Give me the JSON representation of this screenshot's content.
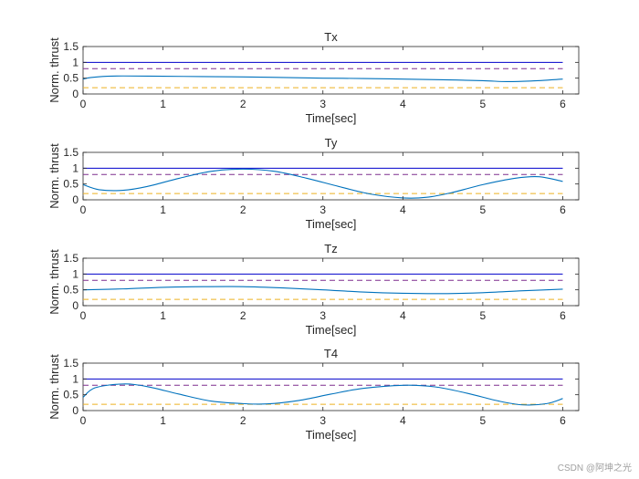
{
  "watermark": "CSDN @阿坤之光",
  "colors": {
    "upper_line": "#0000cc",
    "upper_dash": "#7e2f8e",
    "lower_dash": "#edb120",
    "signal": "#0072bd",
    "axis": "#262626"
  },
  "chart_data": [
    {
      "type": "line",
      "title": "Tx",
      "xlabel": "Time[sec]",
      "ylabel": "Norm. thrust",
      "xlim": [
        0,
        6.2
      ],
      "ylim": [
        0,
        1.5
      ],
      "xticks": [
        "0",
        "1",
        "2",
        "3",
        "4",
        "5",
        "6"
      ],
      "yticks": [
        "0",
        "0.5",
        "1",
        "1.5"
      ],
      "limits": {
        "upper_solid": 1.0,
        "upper_dashed": 0.8,
        "lower_dashed": 0.2
      },
      "signal": {
        "x": [
          0,
          0.1,
          0.3,
          0.5,
          1.0,
          1.5,
          2.0,
          2.5,
          3.0,
          3.5,
          4.0,
          4.5,
          5.0,
          5.3,
          5.6,
          6.0
        ],
        "y": [
          0.47,
          0.52,
          0.56,
          0.57,
          0.56,
          0.55,
          0.54,
          0.52,
          0.5,
          0.49,
          0.47,
          0.45,
          0.42,
          0.39,
          0.41,
          0.47
        ]
      }
    },
    {
      "type": "line",
      "title": "Ty",
      "xlabel": "Time[sec]",
      "ylabel": "Norm. thrust",
      "xlim": [
        0,
        6.2
      ],
      "ylim": [
        0,
        1.5
      ],
      "xticks": [
        "0",
        "1",
        "2",
        "3",
        "4",
        "5",
        "6"
      ],
      "yticks": [
        "0",
        "0.5",
        "1",
        "1.5"
      ],
      "limits": {
        "upper_solid": 1.0,
        "upper_dashed": 0.8,
        "lower_dashed": 0.2
      },
      "signal": {
        "x": [
          0,
          0.2,
          0.5,
          0.8,
          1.2,
          1.6,
          2.0,
          2.4,
          2.8,
          3.2,
          3.6,
          4.0,
          4.3,
          4.6,
          5.0,
          5.4,
          5.7,
          6.0
        ],
        "y": [
          0.48,
          0.32,
          0.3,
          0.42,
          0.68,
          0.9,
          0.97,
          0.9,
          0.68,
          0.42,
          0.18,
          0.06,
          0.08,
          0.22,
          0.48,
          0.68,
          0.73,
          0.58
        ]
      }
    },
    {
      "type": "line",
      "title": "Tz",
      "xlabel": "Time[sec]",
      "ylabel": "Norm. thrust",
      "xlim": [
        0,
        6.2
      ],
      "ylim": [
        0,
        1.5
      ],
      "xticks": [
        "0",
        "1",
        "2",
        "3",
        "4",
        "5",
        "6"
      ],
      "yticks": [
        "0",
        "0.5",
        "1",
        "1.5"
      ],
      "limits": {
        "upper_solid": 1.0,
        "upper_dashed": 0.8,
        "lower_dashed": 0.2
      },
      "signal": {
        "x": [
          0,
          0.5,
          1.0,
          1.5,
          2.0,
          2.5,
          3.0,
          3.5,
          4.0,
          4.5,
          5.0,
          5.5,
          6.0
        ],
        "y": [
          0.5,
          0.53,
          0.58,
          0.6,
          0.6,
          0.56,
          0.5,
          0.43,
          0.39,
          0.38,
          0.41,
          0.47,
          0.52
        ]
      }
    },
    {
      "type": "line",
      "title": "T4",
      "xlabel": "Time[sec]",
      "ylabel": "Norm. thrust",
      "xlim": [
        0,
        6.2
      ],
      "ylim": [
        0,
        1.5
      ],
      "xticks": [
        "0",
        "1",
        "2",
        "3",
        "4",
        "5",
        "6"
      ],
      "yticks": [
        "0",
        "0.5",
        "1",
        "1.5"
      ],
      "limits": {
        "upper_solid": 1.0,
        "upper_dashed": 0.8,
        "lower_dashed": 0.2
      },
      "signal": {
        "x": [
          0,
          0.15,
          0.5,
          0.8,
          1.2,
          1.6,
          2.0,
          2.3,
          2.7,
          3.1,
          3.5,
          4.0,
          4.4,
          4.8,
          5.2,
          5.5,
          5.8,
          6.0
        ],
        "y": [
          0.42,
          0.72,
          0.84,
          0.76,
          0.52,
          0.3,
          0.22,
          0.21,
          0.32,
          0.52,
          0.7,
          0.8,
          0.75,
          0.55,
          0.3,
          0.18,
          0.22,
          0.38
        ]
      }
    }
  ]
}
